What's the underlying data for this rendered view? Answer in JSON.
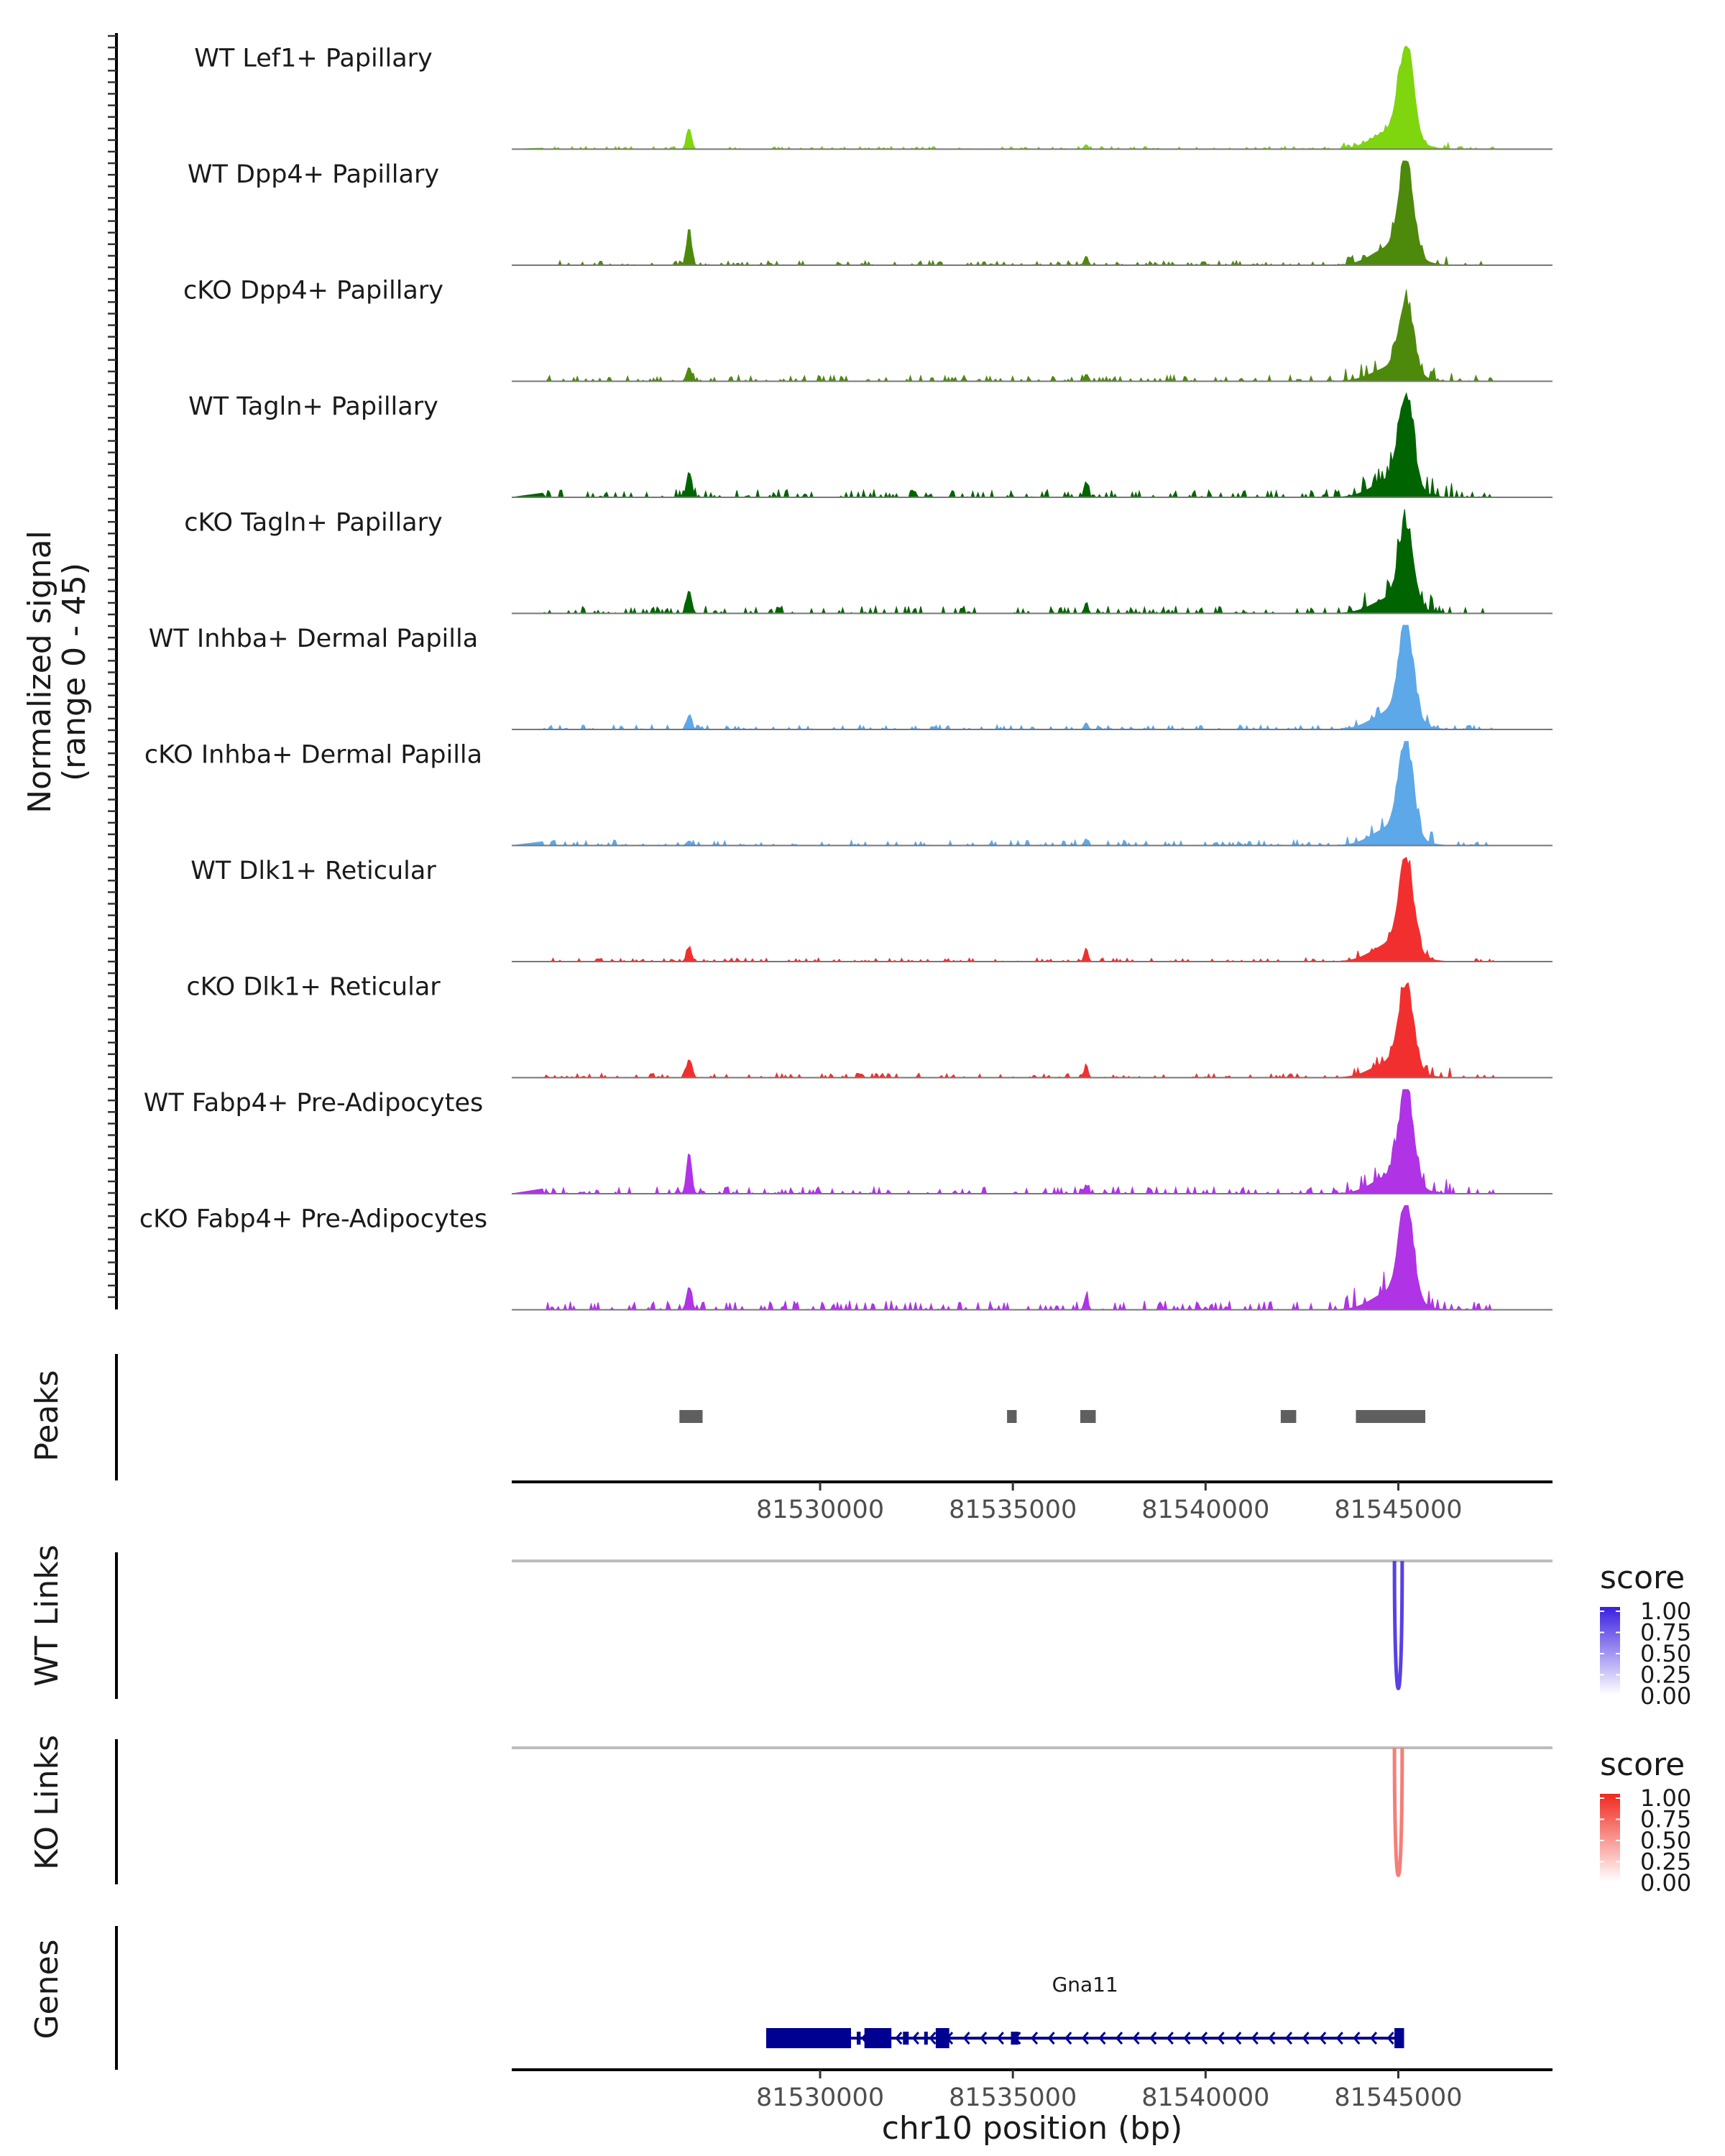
{
  "chart_data": {
    "type": "coverage",
    "chromosome": "chr10",
    "x_range_bp": [
      81522000,
      81549000
    ],
    "coverage_axis_title": "Normalized signal",
    "coverage_axis_range": "(range 0 - 45)",
    "coverage_ylim": [
      0,
      45
    ],
    "xlabel": "chr10 position (bp)",
    "x_ticks": [
      "81530000",
      "81535000",
      "81540000",
      "81545000"
    ],
    "x_tick_values": [
      81530000,
      81535000,
      81540000,
      81545000
    ],
    "background_bp": [
      81522000,
      81526500,
      81527500,
      81531000,
      81533000,
      81535500,
      81537500,
      81539000,
      81541000,
      81542500,
      81543800,
      81546800,
      81547500
    ],
    "tracks": [
      {
        "name": "WT Lef1+ Papillary",
        "color": "#7FD50E",
        "peak_height": 45,
        "early_peak": 9,
        "mid_peak": 2,
        "bg": 1.2,
        "seed": 3
      },
      {
        "name": "WT Dpp4+ Papillary",
        "color": "#4D8A0B",
        "peak_height": 45,
        "early_peak": 15,
        "mid_peak": 4,
        "bg": 2.0,
        "seed": 7
      },
      {
        "name": "cKO Dpp4+ Papillary",
        "color": "#4D8A0B",
        "peak_height": 35,
        "early_peak": 6,
        "mid_peak": 3,
        "bg": 2.6,
        "seed": 11
      },
      {
        "name": "WT Tagln+ Papillary",
        "color": "#006400",
        "peak_height": 45,
        "early_peak": 11,
        "mid_peak": 7,
        "bg": 3.4,
        "seed": 13
      },
      {
        "name": "cKO Tagln+ Papillary",
        "color": "#006400",
        "peak_height": 38,
        "early_peak": 10,
        "mid_peak": 4,
        "bg": 3.2,
        "seed": 17
      },
      {
        "name": "WT Inhba+ Dermal Papilla",
        "color": "#5DA8E8",
        "peak_height": 45,
        "early_peak": 6,
        "mid_peak": 3,
        "bg": 2.0,
        "seed": 19
      },
      {
        "name": "cKO Inhba+ Dermal Papilla",
        "color": "#5DA8E8",
        "peak_height": 45,
        "early_peak": 2,
        "mid_peak": 3,
        "bg": 2.4,
        "seed": 23
      },
      {
        "name": "WT Dlk1+ Reticular",
        "color": "#F22F2F",
        "peak_height": 45,
        "early_peak": 6,
        "mid_peak": 6,
        "bg": 1.6,
        "seed": 29
      },
      {
        "name": "cKO Dlk1+ Reticular",
        "color": "#F22F2F",
        "peak_height": 40,
        "early_peak": 8,
        "mid_peak": 5,
        "bg": 2.0,
        "seed": 31
      },
      {
        "name": "WT Fabp4+ Pre-Adipocytes",
        "color": "#B033E6",
        "peak_height": 45,
        "early_peak": 18,
        "mid_peak": 4,
        "bg": 3.0,
        "seed": 37
      },
      {
        "name": "cKO Fabp4+ Pre-Adipocytes",
        "color": "#B033E6",
        "peak_height": 45,
        "early_peak": 10,
        "mid_peak": 6,
        "bg": 4.0,
        "seed": 41
      }
    ],
    "peaks_title": "Peaks",
    "peaks": [
      {
        "start": 81526350,
        "end": 81526950
      },
      {
        "start": 81534850,
        "end": 81535100
      },
      {
        "start": 81536750,
        "end": 81537150
      },
      {
        "start": 81541950,
        "end": 81542350
      },
      {
        "start": 81543900,
        "end": 81545700
      }
    ],
    "wt_links_title": "WT Links",
    "ko_links_title": "KO Links",
    "wt_link": {
      "start": 81544900,
      "end": 81545100,
      "score": 0.85
    },
    "ko_link": {
      "start": 81544900,
      "end": 81545100,
      "score": 0.6
    },
    "wt_legend": {
      "title": "score",
      "ticks": [
        "1.00",
        "0.75",
        "0.50",
        "0.25",
        "0.00"
      ],
      "high_color": "#3A1FE0",
      "low_color": "#FFFFFF"
    },
    "ko_legend": {
      "title": "score",
      "ticks": [
        "1.00",
        "0.75",
        "0.50",
        "0.25",
        "0.00"
      ],
      "high_color": "#F0281E",
      "low_color": "#FFFFFF"
    },
    "genes_title": "Genes",
    "gene": {
      "name": "Gna11",
      "start": 81528600,
      "end": 81545150,
      "strand": "-",
      "color": "#000091",
      "exons": [
        [
          81528600,
          81530800
        ],
        [
          81530950,
          81531050
        ],
        [
          81531150,
          81531850
        ],
        [
          81532150,
          81532300
        ],
        [
          81532700,
          81532750
        ],
        [
          81533000,
          81533350
        ],
        [
          81534950,
          81535150
        ],
        [
          81544900,
          81545150
        ]
      ]
    }
  }
}
